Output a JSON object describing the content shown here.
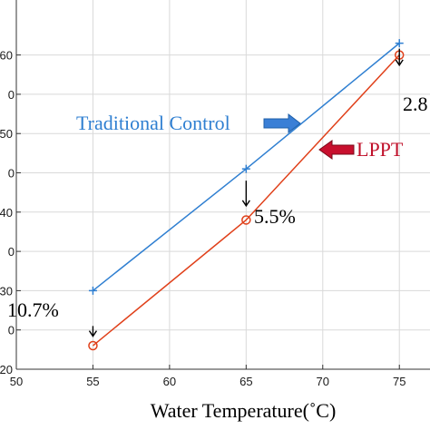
{
  "chart_data": {
    "type": "line",
    "title": "",
    "xlabel": "Water Temperature(˚C)",
    "ylabel": "",
    "xlim": [
      50,
      77
    ],
    "ylim": [
      20,
      67
    ],
    "grid": true,
    "x_ticks": [
      50,
      55,
      60,
      65,
      70,
      75
    ],
    "x_tick_labels": [
      "50",
      "55",
      "60",
      "65",
      "70",
      "75"
    ],
    "y_ticks": [
      20,
      30,
      40,
      50,
      60
    ],
    "y_tick_labels": [
      "20",
      "30",
      "40",
      "50",
      "60"
    ],
    "extra_y_ticks": [
      25,
      35,
      45,
      55
    ],
    "extra_y_tick_labels": [
      "0",
      "0",
      "0",
      "0"
    ],
    "series": [
      {
        "name": "Traditional Control",
        "color": "#2f7fd1",
        "marker": "plus",
        "x": [
          55,
          65,
          75
        ],
        "y": [
          30,
          45.5,
          61.5
        ]
      },
      {
        "name": "LPPT",
        "color": "#e0401a",
        "marker": "circle",
        "x": [
          55,
          65,
          75
        ],
        "y": [
          23,
          39,
          60
        ]
      }
    ],
    "annotations": [
      {
        "text": "10.7%",
        "x": 55,
        "color": "#000000"
      },
      {
        "text": "5.5%",
        "x": 65,
        "color": "#000000"
      },
      {
        "text": "2.8",
        "x": 75,
        "color": "#000000"
      }
    ],
    "legend_labels": {
      "traditional": {
        "text": "Traditional Control",
        "color": "#2f7fd1",
        "arrow_color": "#3a7fd6"
      },
      "lppt": {
        "text": "LPPT",
        "color": "#c0102a",
        "arrow_color": "#c8102e"
      }
    }
  }
}
